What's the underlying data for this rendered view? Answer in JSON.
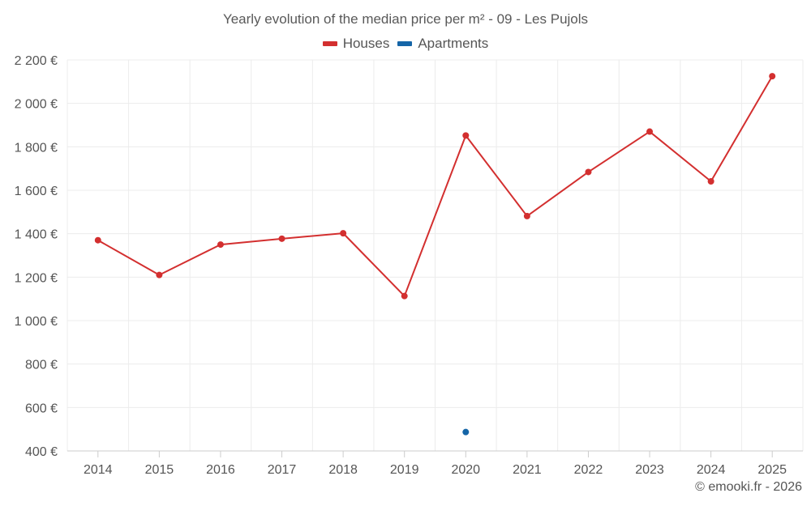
{
  "chart_data": {
    "type": "line",
    "title": "Yearly evolution of the median price per m² - 09 - Les Pujols",
    "categories": [
      "2014",
      "2015",
      "2016",
      "2017",
      "2018",
      "2019",
      "2020",
      "2021",
      "2022",
      "2023",
      "2024",
      "2025"
    ],
    "series": [
      {
        "name": "Houses",
        "color": "#d32f2f",
        "values": [
          1370,
          1210,
          1350,
          1377,
          1402,
          1113,
          1852,
          1481,
          1684,
          1870,
          1641,
          2125
        ]
      },
      {
        "name": "Apartments",
        "color": "#1565a7",
        "values": [
          null,
          null,
          null,
          null,
          null,
          null,
          487,
          null,
          null,
          null,
          null,
          null
        ]
      }
    ],
    "ylim": [
      400,
      2200
    ],
    "yticks": [
      400,
      600,
      800,
      1000,
      1200,
      1400,
      1600,
      1800,
      2000,
      2200
    ],
    "ytick_labels": [
      "400 €",
      "600 €",
      "800 €",
      "1 000 €",
      "1 200 €",
      "1 400 €",
      "1 600 €",
      "1 800 €",
      "2 000 €",
      "2 200 €"
    ],
    "xlabel": "",
    "ylabel": "",
    "grid": true,
    "legend": "top-center"
  },
  "credit": "© emooki.fr - 2026"
}
